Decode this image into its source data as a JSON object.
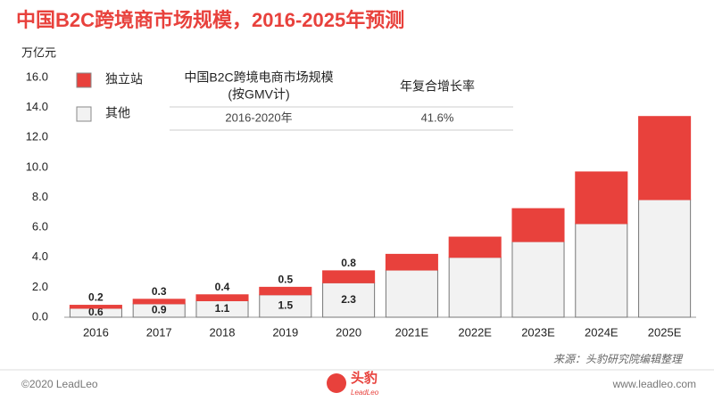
{
  "chart_data": {
    "type": "stacked_bar",
    "title": "中国B2C跨境商市场规模，2016-2025年预测",
    "y_label": "万亿元",
    "categories": [
      "2016",
      "2017",
      "2018",
      "2019",
      "2020",
      "2021E",
      "2022E",
      "2023E",
      "2024E",
      "2025E"
    ],
    "series": [
      {
        "name": "其他",
        "color": "#f2f2f2",
        "values": [
          0.6,
          0.9,
          1.1,
          1.5,
          2.3,
          3.15,
          4.0,
          5.05,
          6.25,
          7.85
        ],
        "value_labels": [
          "0.6",
          "0.9",
          "1.1",
          "1.5",
          "2.3",
          null,
          null,
          null,
          null,
          null
        ]
      },
      {
        "name": "独立站",
        "color": "#e8413c",
        "values": [
          0.2,
          0.3,
          0.4,
          0.5,
          0.8,
          1.05,
          1.35,
          2.2,
          3.45,
          5.55
        ],
        "value_labels": [
          "0.2",
          "0.3",
          "0.4",
          "0.5",
          "0.8",
          null,
          null,
          null,
          null,
          null
        ]
      }
    ],
    "ylim": [
      0,
      16
    ],
    "yticks": [
      {
        "value": 0,
        "label": "0.0"
      },
      {
        "value": 2,
        "label": "2.0"
      },
      {
        "value": 4,
        "label": "4.0"
      },
      {
        "value": 6,
        "label": "6.0"
      },
      {
        "value": 8,
        "label": "8.0"
      },
      {
        "value": 10,
        "label": "10.0"
      },
      {
        "value": 12,
        "label": "12.0"
      },
      {
        "value": 14,
        "label": "14.0"
      },
      {
        "value": 16,
        "label": "16.0"
      }
    ],
    "inset": {
      "header_lines": [
        [
          "中国B2C跨境电商市场规模",
          "(按GMV计)"
        ],
        [
          "年复合增长率"
        ]
      ],
      "rows": [
        [
          "2016-2020年",
          "41.6%"
        ]
      ]
    },
    "source": "来源：头豹研究院编辑整理"
  },
  "footer": {
    "copyright": "©2020 LeadLeo",
    "logo": "头豹",
    "logo_sub": "LeadLeo",
    "website": "www.leadleo.com"
  }
}
